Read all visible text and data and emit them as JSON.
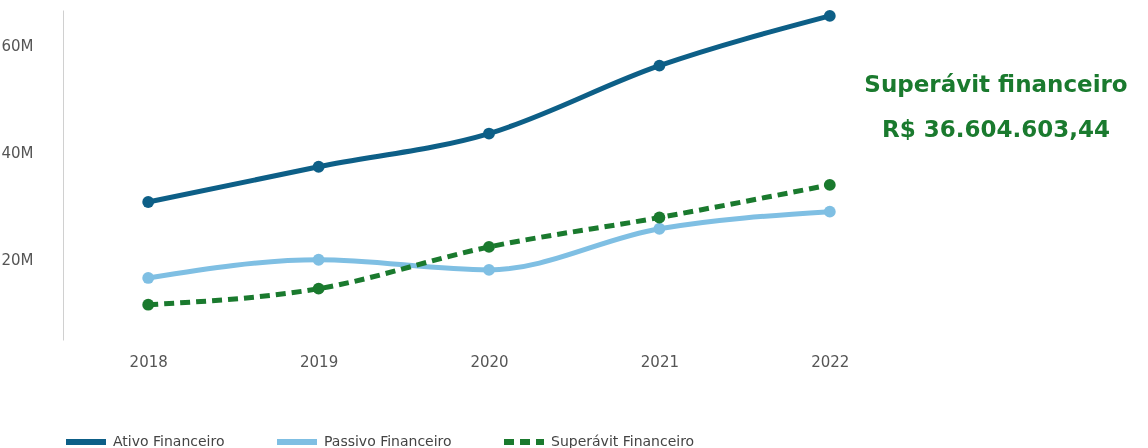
{
  "chart_data": {
    "type": "line",
    "categories": [
      "2018",
      "2019",
      "2020",
      "2021",
      "2022"
    ],
    "series": [
      {
        "name": "Ativo Financeiro",
        "color": "#0d5f87",
        "values": [
          30800000,
          37400000,
          43600000,
          56300000,
          65600000
        ],
        "line_style": "solid"
      },
      {
        "name": "Passivo Financeiro",
        "color": "#7fbfe3",
        "values": [
          16600000,
          20000000,
          18100000,
          25800000,
          29000000
        ],
        "line_style": "solid"
      },
      {
        "name": "Superávit Financeiro",
        "color": "#1a7a2e",
        "values": [
          11600000,
          14600000,
          22400000,
          27900000,
          34000000
        ],
        "line_style": "dashed"
      }
    ],
    "ylim": [
      5000000,
      66700000
    ],
    "yticks": [
      {
        "value": 20000000,
        "label": "20M"
      },
      {
        "value": 40000000,
        "label": "40M"
      },
      {
        "value": 60000000,
        "label": "60M"
      }
    ],
    "annotations": [
      "Superávit financeiro",
      "R$ 36.604.603,44"
    ],
    "grid": false,
    "legend": "bottom",
    "marker": "circle"
  }
}
